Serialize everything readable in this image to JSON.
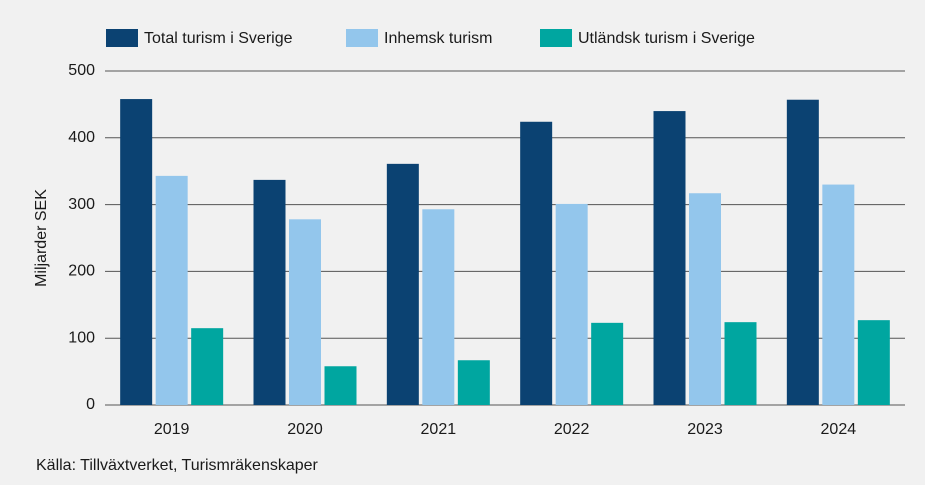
{
  "chart_data": {
    "type": "bar",
    "y_label": "Miljarder SEK",
    "source": "Källa: Tillväxtverket, Turismräkenskaper",
    "categories": [
      "2019",
      "2020",
      "2021",
      "2022",
      "2023",
      "2024"
    ],
    "series": [
      {
        "name": "Total turism i Sverige",
        "color": "#0b4272",
        "values": [
          458,
          337,
          361,
          424,
          440,
          457
        ]
      },
      {
        "name": "Inhemsk turism",
        "color": "#93c6ec",
        "values": [
          343,
          278,
          293,
          301,
          317,
          330
        ]
      },
      {
        "name": "Utländsk turism i Sverige",
        "color": "#00a6a0",
        "values": [
          115,
          58,
          67,
          123,
          124,
          127
        ]
      }
    ],
    "ylim": [
      0,
      500
    ],
    "yticks": [
      0,
      100,
      200,
      300,
      400,
      500
    ],
    "grid": true
  }
}
